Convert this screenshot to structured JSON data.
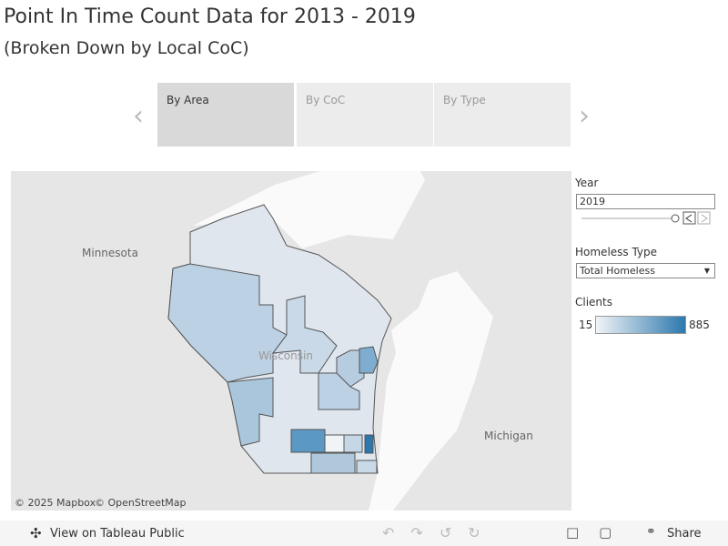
{
  "header": {
    "title": "Point In Time Count Data for 2013 - 2019",
    "subtitle": "(Broken Down by Local CoC)"
  },
  "tabs": [
    "By Area",
    "By CoC",
    "By Type"
  ],
  "filters": {
    "year": {
      "label": "Year",
      "value": "2019"
    },
    "homeless_type": {
      "label": "Homeless Type",
      "value": "Total Homeless"
    }
  },
  "legend": {
    "label": "Clients",
    "min": 15,
    "max": 885
  },
  "map": {
    "labels": [
      "Minnesota",
      "Wisconsin",
      "Michigan"
    ],
    "attribution": [
      "© 2025 Mapbox",
      "© OpenStreetMap"
    ]
  },
  "toolbar": {
    "view_link": "View on Tableau Public",
    "share": "Share"
  }
}
